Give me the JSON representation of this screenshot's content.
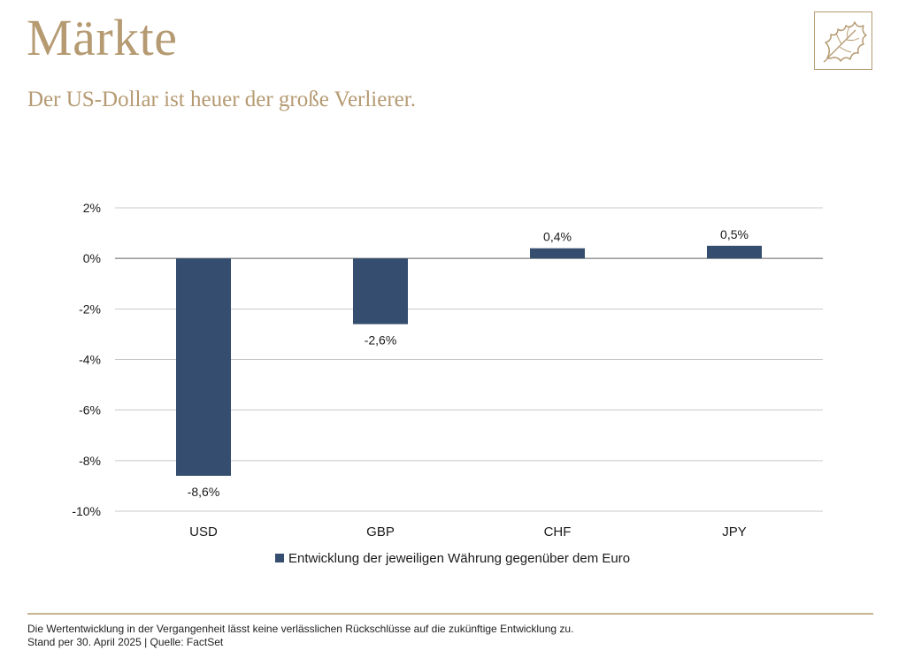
{
  "header": {
    "title": "Märkte",
    "subtitle": "Der US-Dollar ist heuer der große Verlierer."
  },
  "logo": {
    "icon": "oak-leaf-icon",
    "color": "#b59a72"
  },
  "chart_data": {
    "type": "bar",
    "categories": [
      "USD",
      "GBP",
      "CHF",
      "JPY"
    ],
    "series": [
      {
        "name": "Entwicklung der jeweiligen Währung gegenüber dem Euro",
        "values": [
          -8.6,
          -2.6,
          0.4,
          0.5
        ],
        "labels": [
          "-8,6%",
          "-2,6%",
          "0,4%",
          "0,5%"
        ],
        "color": "#354d6e"
      }
    ],
    "ylim": [
      -10,
      2
    ],
    "yticks": [
      2,
      0,
      -2,
      -4,
      -6,
      -8,
      -10
    ],
    "ytick_labels": [
      "2%",
      "0%",
      "-2%",
      "-4%",
      "-6%",
      "-8%",
      "-10%"
    ],
    "grid": true,
    "legend": "bottom"
  },
  "footer": {
    "disclaimer": "Die Wertentwicklung in der Vergangenheit lässt keine verlässlichen Rückschlüsse auf die zukünftige Entwicklung zu.",
    "source": "Stand per 30. April 2025 | Quelle: FactSet"
  }
}
